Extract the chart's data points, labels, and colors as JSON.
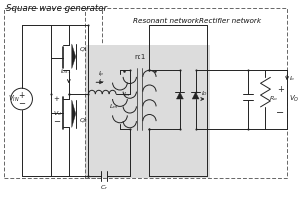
{
  "title": "Square wave generator",
  "subtitle": "Resonant networkRectifier network",
  "bg_color": "#ffffff",
  "gray_fill": "#dcdcdc",
  "line_color": "#222222",
  "figsize": [
    3.0,
    1.99
  ],
  "dpi": 100
}
